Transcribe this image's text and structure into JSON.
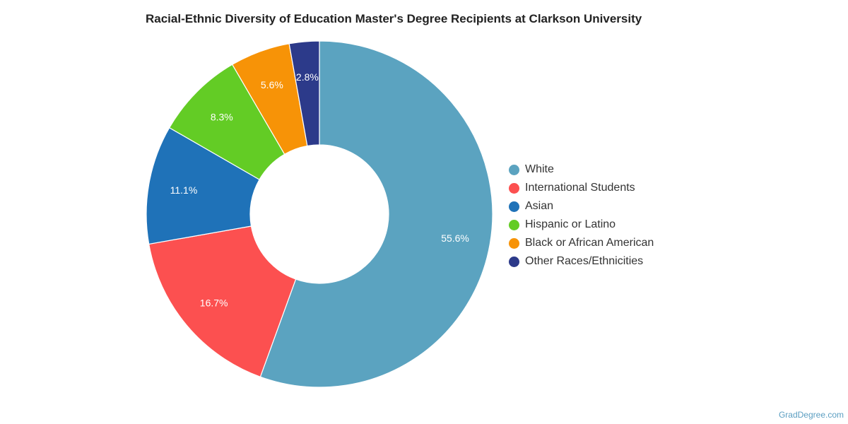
{
  "title": "Racial-Ethnic Diversity of Education Master's Degree Recipients at Clarkson University",
  "watermark": "GradDegree.com",
  "chart_data": {
    "type": "pie",
    "donut": true,
    "title": "Racial-Ethnic Diversity of Education Master's Degree Recipients at Clarkson University",
    "legend_position": "right",
    "slices": [
      {
        "label": "White",
        "value": 55.6,
        "display": "55.6%",
        "color": "#5ba3c0"
      },
      {
        "label": "International Students",
        "value": 16.7,
        "display": "16.7%",
        "color": "#fc5050"
      },
      {
        "label": "Asian",
        "value": 11.1,
        "display": "11.1%",
        "color": "#1f72b8"
      },
      {
        "label": "Hispanic or Latino",
        "value": 8.3,
        "display": "8.3%",
        "color": "#63cc25"
      },
      {
        "label": "Black or African American",
        "value": 5.6,
        "display": "5.6%",
        "color": "#f79307"
      },
      {
        "label": "Other Races/Ethnicities",
        "value": 2.8,
        "display": "2.8%",
        "color": "#2c3a8a"
      }
    ]
  }
}
